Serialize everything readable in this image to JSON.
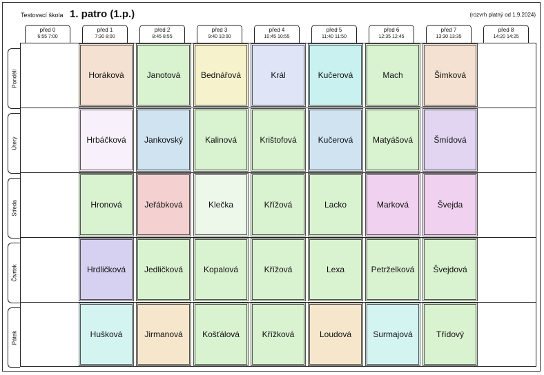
{
  "header": {
    "school": "Testovací škola",
    "title": "1. patro (1.p.)",
    "validity": "(rozvrh platný od 1.9.2024)"
  },
  "periods": [
    {
      "name": "před 0",
      "time": "6:55  7:00"
    },
    {
      "name": "před 1",
      "time": "7:30  8:00"
    },
    {
      "name": "před 2",
      "time": "8:45  8:55"
    },
    {
      "name": "před 3",
      "time": "9:40 10:00"
    },
    {
      "name": "před 4",
      "time": "10:45 10:55"
    },
    {
      "name": "před 5",
      "time": "11:40 11:50"
    },
    {
      "name": "před 6",
      "time": "12:35 12:45"
    },
    {
      "name": "před 7",
      "time": "13:30 13:35"
    },
    {
      "name": "před 8",
      "time": "14:20 14:25"
    }
  ],
  "days": [
    "Pondělí",
    "Úterý",
    "Středa",
    "Čtvrtek",
    "Pátek"
  ],
  "schedule": [
    [
      {
        "name": "Horáková",
        "color": "#f4e1d2"
      },
      {
        "name": "Janotová",
        "color": "#d9f2d0"
      },
      {
        "name": "Bednářová",
        "color": "#f5f2cc"
      },
      {
        "name": "Král",
        "color": "#dfe5f7"
      },
      {
        "name": "Kučerová",
        "color": "#c9f1ef"
      },
      {
        "name": "Mach",
        "color": "#d9f2d0"
      },
      {
        "name": "Šimková",
        "color": "#f4e1d2"
      }
    ],
    [
      {
        "name": "Hrbáčková",
        "color": "#f8f0fa"
      },
      {
        "name": "Jankovský",
        "color": "#cfe3f1"
      },
      {
        "name": "Kalinová",
        "color": "#d9f2d0"
      },
      {
        "name": "Krištofová",
        "color": "#d9f2d0"
      },
      {
        "name": "Kučerová",
        "color": "#cfe3f1"
      },
      {
        "name": "Matyášová",
        "color": "#d9f2d0"
      },
      {
        "name": "Šmídová",
        "color": "#e1d5f1"
      }
    ],
    [
      {
        "name": "Hronová",
        "color": "#d9f2d0"
      },
      {
        "name": "Jeřábková",
        "color": "#f4d0d0"
      },
      {
        "name": "Klečka",
        "color": "#eef8ea"
      },
      {
        "name": "Křížová",
        "color": "#d9f2d0"
      },
      {
        "name": "Lacko",
        "color": "#d9f2d0"
      },
      {
        "name": "Marková",
        "color": "#f0d2f0"
      },
      {
        "name": "Švejda",
        "color": "#f0d2f0"
      }
    ],
    [
      {
        "name": "Hrdličková",
        "color": "#d6d0f1"
      },
      {
        "name": "Jedličková",
        "color": "#d9f2d0"
      },
      {
        "name": "Kopalová",
        "color": "#d9f2d0"
      },
      {
        "name": "Křížová",
        "color": "#d9f2d0"
      },
      {
        "name": "Lexa",
        "color": "#d9f2d0"
      },
      {
        "name": "Petrželková",
        "color": "#d9f2d0"
      },
      {
        "name": "Švejdová",
        "color": "#d9f2d0"
      }
    ],
    [
      {
        "name": "Hušková",
        "color": "#d4f4f2"
      },
      {
        "name": "Jirmanová",
        "color": "#f5e6cc"
      },
      {
        "name": "Košťálová",
        "color": "#d9f2d0"
      },
      {
        "name": "Křížková",
        "color": "#d9f2d0"
      },
      {
        "name": "Loudová",
        "color": "#f5e6cc"
      },
      {
        "name": "Surmajová",
        "color": "#d4f4f2"
      },
      {
        "name": "Třídový",
        "color": "#d9f2d0"
      }
    ]
  ]
}
